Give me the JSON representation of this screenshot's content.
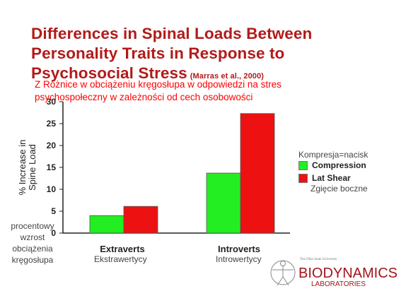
{
  "slide": {
    "title_lines": [
      "Differences in Spinal Loads Between",
      "Personality Traits in Response to",
      "Psychosocial Stress"
    ],
    "citation": "(Marras et al., 2000)",
    "overlay_lines": [
      "Z Różnice w obciążeniu kręgosłupa w odpowiedzi na stres",
      "psychospołeczny w zależności od cech osobowości"
    ],
    "legend_note": "Kompresja=nacisk",
    "lat_shear_note": "Zgięcie boczne",
    "category_notes": [
      "Ekstrawertycy",
      "Introwertycy"
    ],
    "left_note": [
      "procentowy",
      "wzrost",
      "obciążenia",
      "kręgosłupa"
    ],
    "logo": {
      "line1": "BIODYNAMICS",
      "line2": "LABORATORIES",
      "small": "The Ohio State University"
    }
  },
  "chart_data": {
    "type": "bar",
    "categories": [
      "Extraverts",
      "Introverts"
    ],
    "series": [
      {
        "name": "Compression",
        "values": [
          4,
          13.7
        ],
        "color": "#22ee22"
      },
      {
        "name": "Lat Shear",
        "values": [
          6.1,
          27.3
        ],
        "color": "#ee1111"
      }
    ],
    "ylabel": "% Increase in Spine Load",
    "ylim": [
      0,
      30
    ],
    "yticks": [
      "0",
      "5",
      "10",
      "15",
      "20",
      "25",
      "30"
    ],
    "grid": false,
    "legend_position": "right"
  }
}
